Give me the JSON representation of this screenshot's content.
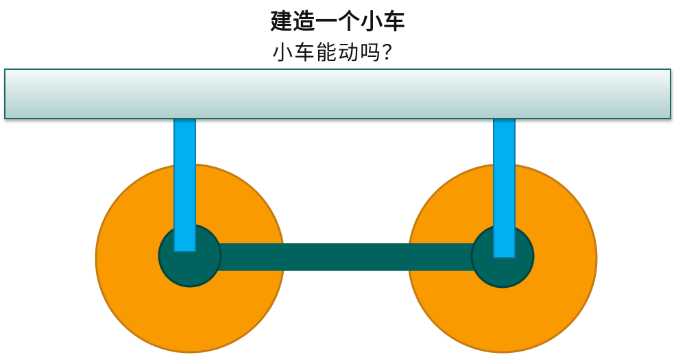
{
  "title": "建造一个小车",
  "subtitle": "小车能动吗？",
  "colors": {
    "wheel_fill": "#F99A00",
    "wheel_stroke": "#C57A12",
    "hub_fill": "#00635E",
    "hub_stroke": "#01433F",
    "axle_fill": "#00635E",
    "strut_fill": "#00B0F0",
    "strut_stroke": "#0A7DA8",
    "board_top": "#F4FAF9",
    "board_bottom": "#AFCFCD",
    "board_stroke": "#1E6B6A"
  }
}
